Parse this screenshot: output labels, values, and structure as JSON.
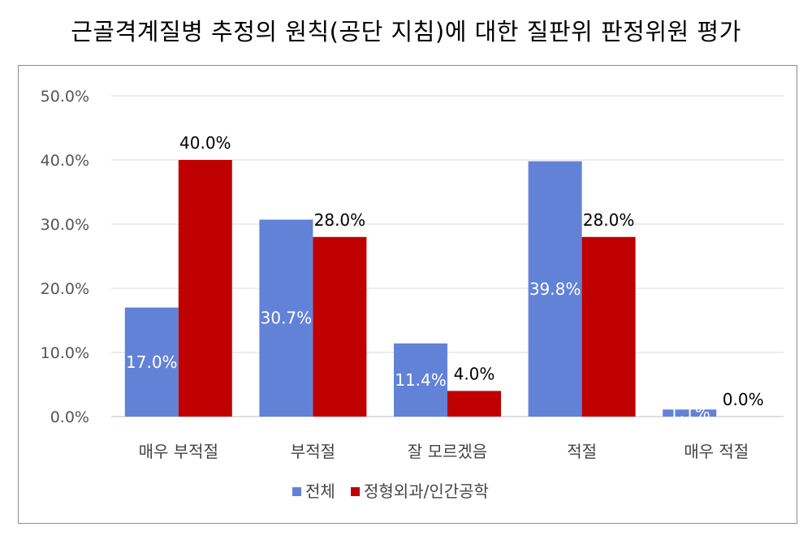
{
  "chart_data": {
    "type": "bar",
    "title": "근골격계질병 추정의 원칙(공단 지침)에 대한 질판위 판정위원 평가",
    "xlabel": "",
    "ylabel": "",
    "categories": [
      "매우 부적절",
      "부적절",
      "잘 모르겠음",
      "적절",
      "매우 적절"
    ],
    "series": [
      {
        "name": "전체",
        "color": "#6282d8",
        "values": [
          17.0,
          30.7,
          11.4,
          39.8,
          1.1
        ],
        "labels": [
          "17.0%",
          "30.7%",
          "11.4%",
          "39.8%",
          "1.1%"
        ]
      },
      {
        "name": "정형외과/인간공학",
        "color": "#c00000",
        "values": [
          40.0,
          28.0,
          4.0,
          28.0,
          0.0
        ],
        "labels": [
          "40.0%",
          "28.0%",
          "4.0%",
          "28.0%",
          "0.0%"
        ]
      }
    ],
    "ylim": [
      0,
      50
    ],
    "yticks": [
      0,
      10,
      20,
      30,
      40,
      50
    ],
    "ytick_labels": [
      "0.0%",
      "10.0%",
      "20.0%",
      "30.0%",
      "40.0%",
      "50.0%"
    ],
    "grid": true,
    "legend_position": "bottom"
  }
}
